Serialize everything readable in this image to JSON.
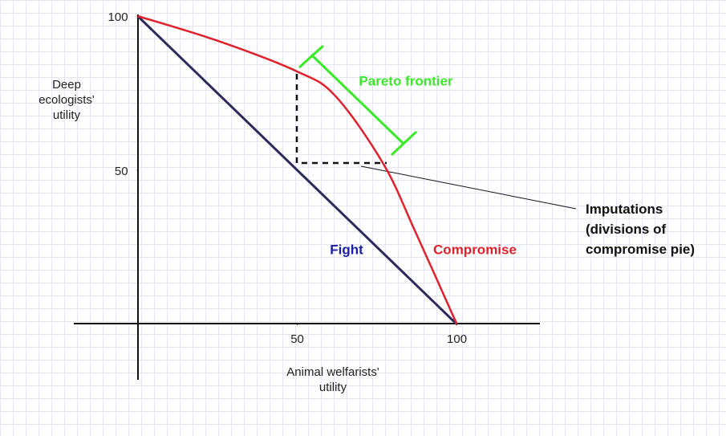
{
  "chart_data": {
    "type": "line",
    "x_label": "Animal welfarists' utility",
    "y_label": "Deep ecologists' utility",
    "xlim": [
      -20,
      126
    ],
    "ylim": [
      -18,
      100
    ],
    "xticks": [
      50,
      100
    ],
    "yticks": [
      50,
      100
    ],
    "series": [
      {
        "name": "Fight",
        "color": "#2c2c5c",
        "label_color": "#1c1caa",
        "x": [
          0,
          100
        ],
        "values": [
          100,
          0
        ]
      },
      {
        "name": "Compromise",
        "color": "#e0202a",
        "label_color": "#e0202a",
        "x": [
          0,
          25,
          50,
          62,
          77,
          87,
          100
        ],
        "values": [
          100,
          92,
          82,
          74,
          52,
          30,
          0
        ]
      }
    ],
    "annotations": [
      "Pareto frontier",
      "Imputations (divisions of compromise pie)"
    ]
  }
}
